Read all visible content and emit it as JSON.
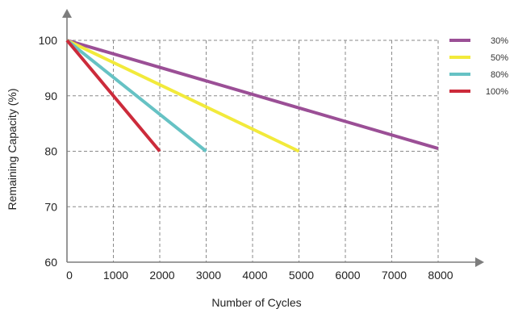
{
  "chart_data": {
    "type": "line",
    "xlabel": "Number of Cycles",
    "ylabel": "Remaining Capacity (%)",
    "xlim": [
      0,
      8000
    ],
    "ylim": [
      60,
      100
    ],
    "x_ticks": [
      0,
      1000,
      2000,
      3000,
      4000,
      5000,
      6000,
      7000,
      8000
    ],
    "y_ticks": [
      60,
      70,
      80,
      90,
      100
    ],
    "grid": true,
    "legend_position": "top-right",
    "series": [
      {
        "name": "30%",
        "color": "#9b4f96",
        "points": [
          [
            0,
            100
          ],
          [
            8000,
            80.5
          ]
        ]
      },
      {
        "name": "50%",
        "color": "#f2ea3b",
        "points": [
          [
            0,
            100
          ],
          [
            5000,
            80
          ]
        ]
      },
      {
        "name": "80%",
        "color": "#66c2c4",
        "points": [
          [
            0,
            100
          ],
          [
            3000,
            80
          ]
        ]
      },
      {
        "name": "100%",
        "color": "#cc2b3b",
        "points": [
          [
            0,
            100
          ],
          [
            2000,
            80
          ]
        ]
      }
    ]
  }
}
